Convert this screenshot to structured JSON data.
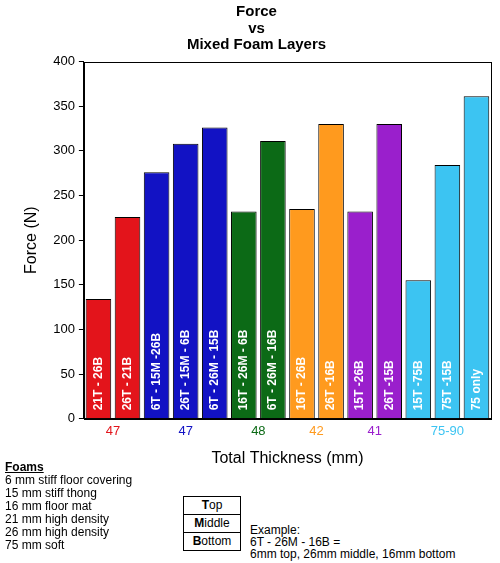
{
  "chart_data": {
    "type": "bar",
    "title": [
      "Force",
      "vs",
      "Mixed Foam Layers"
    ],
    "x_label": "Total Thickness (mm)",
    "y_label": "Force (N)",
    "groups": [
      {
        "label": "47",
        "color": "#e3141b",
        "categories": [
          "21T - 26B",
          "26T - 21B"
        ],
        "values": [
          134,
          226
        ]
      },
      {
        "label": "47",
        "color": "#1212c4",
        "categories": [
          "6T - 15M -26B",
          "26T - 15M - 6B",
          "6T - 26M - 15B"
        ],
        "values": [
          276,
          308,
          326
        ]
      },
      {
        "label": "48",
        "color": "#0c6a16",
        "categories": [
          "16T - 26M - 6B",
          "6T - 26M - 16B"
        ],
        "values": [
          232,
          311
        ]
      },
      {
        "label": "42",
        "color": "#ff9a1e",
        "categories": [
          "16T - 26B",
          "26T -16B"
        ],
        "values": [
          235,
          330
        ]
      },
      {
        "label": "41",
        "color": "#9a1fcc",
        "categories": [
          "15T -26B",
          "26T -15B"
        ],
        "values": [
          232,
          330
        ]
      },
      {
        "label": "75-90",
        "color": "#3cc4f2",
        "categories": [
          "15T -75B",
          "75T -15B",
          "75 only"
        ],
        "values": [
          155,
          284,
          361
        ]
      }
    ],
    "ylim": [
      0,
      400
    ],
    "yticks": [
      0,
      50,
      100,
      150,
      200,
      250,
      300,
      350,
      400
    ],
    "grid": false,
    "annotations": {
      "foams": {
        "heading": "Foams",
        "items": [
          "6 mm stiff floor covering",
          "15 mm stiff thong",
          "16 mm floor mat",
          "21 mm high density",
          "26 mm high density",
          "75 mm soft"
        ]
      },
      "layer_key": [
        "Top",
        "Middle",
        "Bottom"
      ],
      "example": [
        "Example:",
        "6T - 26M - 16B =",
        "6mm top, 26mm middle, 16mm bottom"
      ]
    }
  }
}
